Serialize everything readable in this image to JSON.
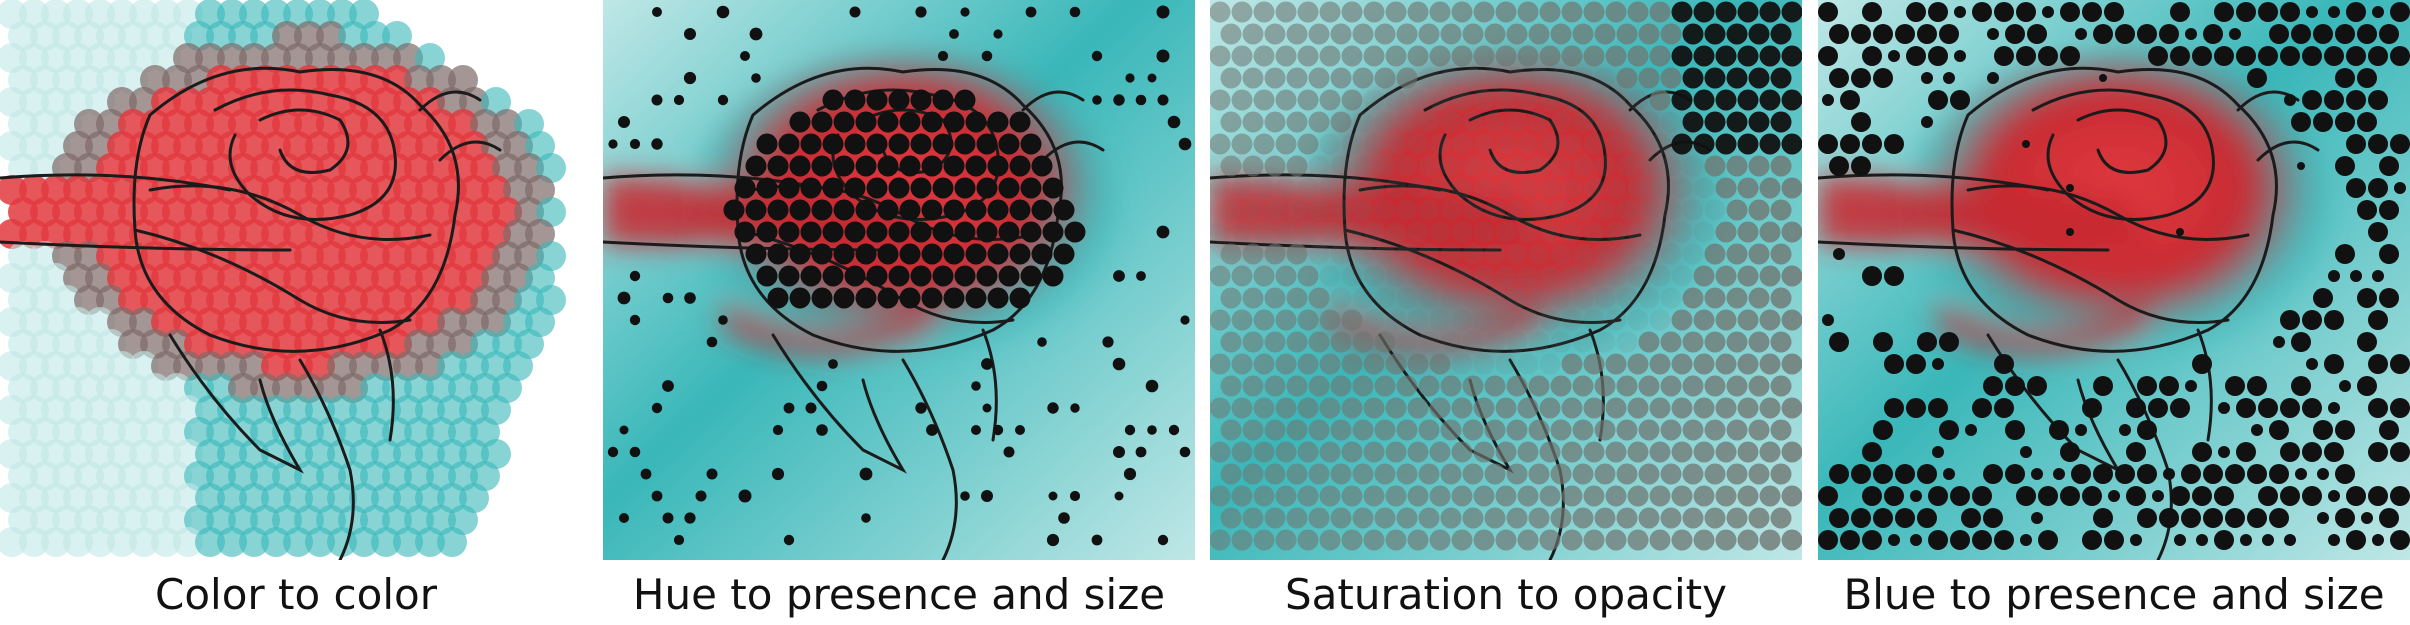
{
  "panels": [
    {
      "id": "color",
      "caption": "Color to color",
      "mode": "color"
    },
    {
      "id": "hue",
      "caption": "Hue to presence and size",
      "mode": "hue"
    },
    {
      "id": "saturation",
      "caption": "Saturation to opacity",
      "mode": "sat"
    },
    {
      "id": "blue",
      "caption": "Blue to presence and size",
      "mode": "blue"
    }
  ],
  "colors": {
    "teal": "#39b7b9",
    "light_teal": "#bfe7e6",
    "rose_red": "#e23a3f",
    "deep_red": "#c72b33",
    "dot": "#111111",
    "grey_dot": "#6f7671",
    "sketch": "#1b1b1b"
  },
  "icons": [
    "rose-sketch"
  ]
}
